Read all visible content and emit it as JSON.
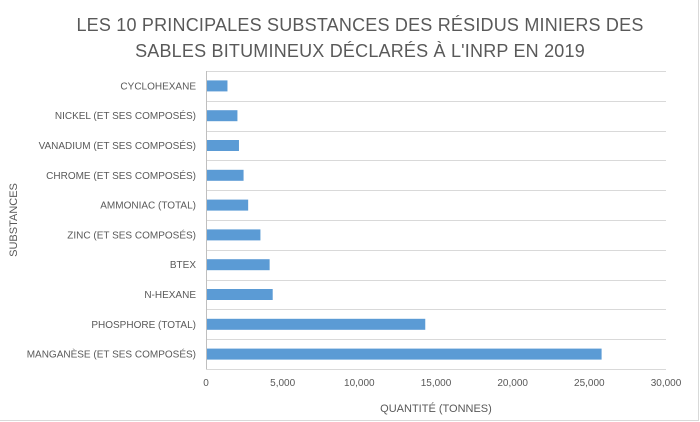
{
  "chart_data": {
    "type": "bar",
    "orientation": "horizontal",
    "title": "LES 10 PRINCIPALES SUBSTANCES DES RÉSIDUS MINIERS DES SABLES BITUMINEUX DÉCLARÉS À L'INRP EN 2019",
    "xlabel": "QUANTITÉ (TONNES)",
    "ylabel": "SUBSTANCES",
    "categories": [
      "CYCLOHEXANE",
      "NICKEL (ET SES COMPOSÉS)",
      "VANADIUM (ET SES COMPOSÉS)",
      "CHROME (ET SES COMPOSÉS)",
      "AMMONIAC (TOTAL)",
      "ZINC (ET SES COMPOSÉS)",
      "BTEX",
      "N-HEXANE",
      "PHOSPHORE (TOTAL)",
      "MANGANÈSE (ET SES COMPOSÉS)"
    ],
    "values": [
      1400,
      2050,
      2150,
      2450,
      2750,
      3550,
      4150,
      4350,
      14300,
      25800
    ],
    "xlim": [
      0,
      30000
    ],
    "xticks": [
      0,
      5000,
      10000,
      15000,
      20000,
      25000,
      30000
    ],
    "xtick_labels": [
      "0",
      "5,000",
      "10,000",
      "15,000",
      "20,000",
      "25,000",
      "30,000"
    ],
    "bar_color": "#5b9bd5",
    "grid": true,
    "legend": "none"
  }
}
